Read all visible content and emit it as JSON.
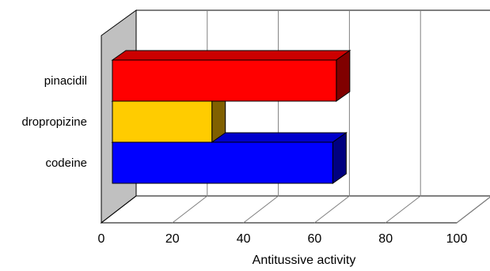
{
  "chart_data": {
    "type": "bar",
    "orientation": "horizontal",
    "three_d": true,
    "categories": [
      "pinacidil",
      "dropropizine",
      "codeine"
    ],
    "values": [
      63,
      28,
      62
    ],
    "xlabel": "Antitussive activity",
    "ylabel": "",
    "title": "",
    "xlim": [
      0,
      100
    ],
    "xticks": [
      0,
      20,
      40,
      60,
      80,
      100
    ],
    "grid": true,
    "legend": "none",
    "colors": {
      "pinacidil": {
        "front": "#ff0000",
        "top": "#cc0000",
        "side": "#800000"
      },
      "dropropizine": {
        "front": "#ffcc00",
        "top": "#cc9900",
        "side": "#806000"
      },
      "codeine": {
        "front": "#0000ff",
        "top": "#0000cc",
        "side": "#000080"
      },
      "wall": "#c0c0c0",
      "gridline": "#808080"
    }
  }
}
